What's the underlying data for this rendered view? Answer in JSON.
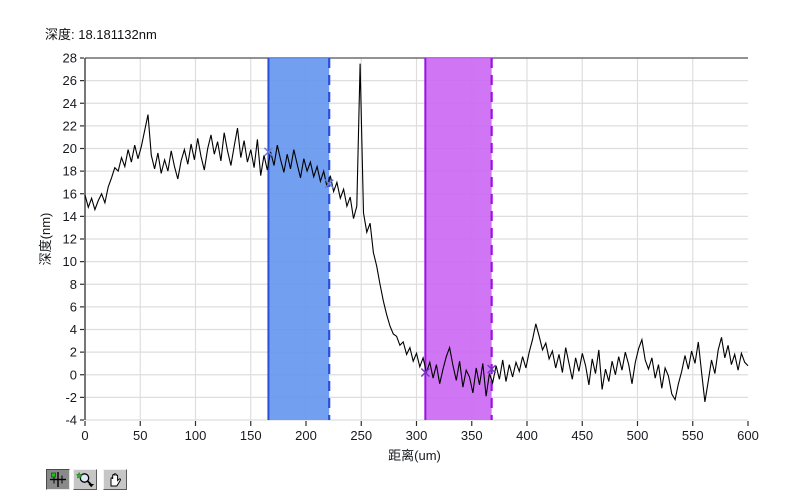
{
  "readout": {
    "text": "深度: 18.181132nm"
  },
  "chart_data": {
    "type": "line",
    "title": "",
    "xlabel": "距离(um)",
    "ylabel": "深度(nm)",
    "xlim": [
      0,
      600
    ],
    "ylim": [
      -4,
      28
    ],
    "x_ticks": [
      0,
      50,
      100,
      150,
      200,
      250,
      300,
      350,
      400,
      450,
      500,
      550,
      600
    ],
    "y_ticks": [
      28,
      26,
      24,
      22,
      20,
      18,
      16,
      14,
      12,
      10,
      8,
      6,
      4,
      2,
      0,
      -2,
      -4
    ],
    "grid": true,
    "legend": "none",
    "colors": {
      "grid": "#dedede",
      "axis": "#2e2e2e",
      "top_border": "#6e6e6e",
      "tick_label": "#17191f",
      "trace": "#000000"
    },
    "series": [
      {
        "name": "depth-profile",
        "color": "#000000",
        "x_start": 0,
        "x_step": 3,
        "values": [
          15.9,
          14.8,
          15.6,
          14.6,
          15.4,
          16.0,
          15.2,
          16.6,
          17.4,
          18.3,
          18.0,
          19.2,
          18.4,
          19.9,
          18.8,
          20.3,
          19.1,
          20.2,
          21.6,
          23.0,
          19.4,
          18.2,
          19.6,
          17.8,
          19.0,
          18.0,
          19.8,
          18.4,
          17.3,
          18.9,
          19.9,
          18.6,
          20.4,
          19.0,
          20.9,
          19.3,
          18.1,
          20.0,
          21.2,
          19.5,
          20.6,
          18.9,
          21.4,
          19.8,
          18.5,
          20.2,
          21.8,
          19.2,
          20.7,
          18.8,
          19.9,
          18.3,
          20.8,
          17.6,
          19.4,
          18.1,
          19.7,
          18.5,
          20.3,
          19.0,
          17.9,
          19.5,
          18.2,
          19.9,
          18.6,
          17.4,
          19.1,
          18.0,
          18.8,
          17.5,
          18.4,
          17.1,
          18.0,
          16.6,
          17.6,
          16.2,
          17.0,
          15.6,
          16.4,
          14.9,
          15.7,
          13.8,
          14.9,
          27.5,
          14.3,
          12.6,
          13.4,
          10.8,
          9.6,
          8.0,
          6.5,
          5.3,
          4.3,
          3.6,
          3.4,
          2.6,
          2.9,
          1.8,
          2.4,
          1.2,
          1.9,
          0.7,
          1.5,
          0.2,
          1.1,
          -0.3,
          0.9,
          -0.8,
          0.5,
          1.6,
          2.4,
          0.8,
          -0.5,
          1.2,
          -1.1,
          0.4,
          -0.2,
          -1.6,
          0.6,
          -0.9,
          1.0,
          -1.9,
          0.1,
          -0.7,
          0.8,
          -0.4,
          1.3,
          -0.6,
          0.9,
          -0.2,
          1.1,
          0.3,
          1.6,
          0.6,
          2.0,
          3.1,
          4.5,
          3.4,
          2.2,
          2.8,
          1.4,
          2.1,
          0.6,
          1.8,
          0.2,
          2.4,
          1.0,
          -0.4,
          1.5,
          0.3,
          1.9,
          0.8,
          -0.9,
          1.4,
          0.1,
          2.2,
          -1.3,
          0.5,
          -0.6,
          1.2,
          0.0,
          1.6,
          0.4,
          2.0,
          0.9,
          -0.8,
          1.1,
          2.3,
          3.1,
          1.3,
          0.5,
          1.5,
          -0.3,
          0.9,
          -1.2,
          0.6,
          -0.1,
          -1.7,
          -2.2,
          -0.8,
          0.3,
          1.7,
          0.5,
          2.1,
          1.0,
          2.9,
          0.2,
          -2.4,
          -0.6,
          1.3,
          0.1,
          2.2,
          3.3,
          1.5,
          2.6,
          0.9,
          1.8,
          0.4,
          1.9,
          1.1,
          0.8
        ]
      }
    ],
    "regions": [
      {
        "name": "blue-selection-band",
        "x_start": 166,
        "x_end": 221,
        "fill": "#6495ee",
        "edge": "#2a50d8",
        "left_edge_style": "solid",
        "right_edge_style": "dashed"
      },
      {
        "name": "magenta-selection-band",
        "x_start": 308,
        "x_end": 368,
        "fill": "#cb67f3",
        "edge": "#9d12df",
        "left_edge_style": "solid",
        "right_edge_style": "dashed"
      }
    ],
    "cursors": [
      {
        "x": 166,
        "y": 19.7,
        "color": "#6a7fd6"
      },
      {
        "x": 221,
        "y": 16.9,
        "color": "#6a7fd6"
      },
      {
        "x": 308,
        "y": 0.2,
        "color": "#6f3cc0"
      },
      {
        "x": 368,
        "y": 0.5,
        "color": "#6f3cc0"
      }
    ]
  },
  "toolbar": {
    "buttons": [
      {
        "name": "cursor-tool",
        "icon": "crosshair-icon",
        "pressed": true
      },
      {
        "name": "zoom-tool",
        "icon": "magnifier-icon",
        "pressed": false
      },
      {
        "name": "pan-tool",
        "icon": "hand-icon",
        "pressed": false
      }
    ]
  }
}
